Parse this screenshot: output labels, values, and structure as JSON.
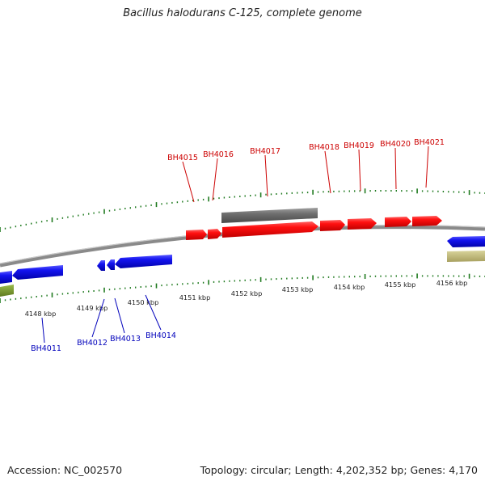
{
  "title": "Bacillus halodurans C-125, complete genome",
  "footer": {
    "accession": "Accession: NC_002570",
    "summary": "Topology: circular; Length: 4,202,352 bp; Genes: 4,170"
  },
  "colors": {
    "forward_gene": "#ee0000",
    "reverse_gene": "#1010ee",
    "other_feature": "#707070",
    "backbone": "#8a8a8a",
    "tick": "#1f7a1f",
    "forward_label": "#cc0000",
    "reverse_label": "#0000bb"
  },
  "scale_labels": [
    "4148 kbp",
    "4149 kbp",
    "4150 kbp",
    "4151 kbp",
    "4152 kbp",
    "4153 kbp",
    "4154 kbp",
    "4155 kbp",
    "4156 kbp"
  ],
  "forward_genes": [
    "BH4015",
    "BH4016",
    "BH4017",
    "BH4018",
    "BH4019",
    "BH4020",
    "BH4021"
  ],
  "reverse_genes": [
    "BH4011",
    "BH4012",
    "BH4013",
    "BH4014"
  ]
}
